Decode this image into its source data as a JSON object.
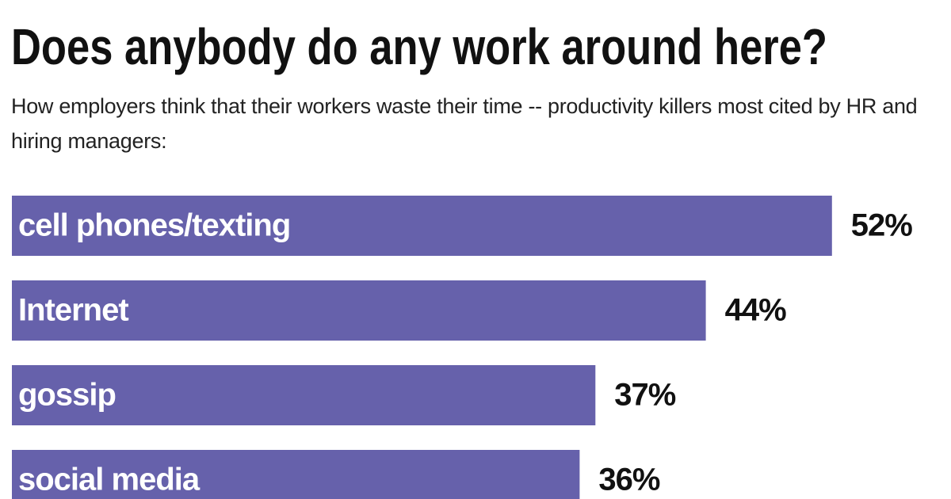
{
  "chart_data": {
    "type": "hbar",
    "title": "Does anybody do any work around here?",
    "subtitle": "How employers think that their workers waste their time -- productivity killers most cited by HR and hiring managers:",
    "categories": [
      "cell phones/texting",
      "Internet",
      "gossip",
      "social media"
    ],
    "values": [
      52,
      44,
      37,
      36
    ],
    "value_labels": [
      "52%",
      "44%",
      "37%",
      "36%"
    ],
    "color": "#6661ab"
  }
}
